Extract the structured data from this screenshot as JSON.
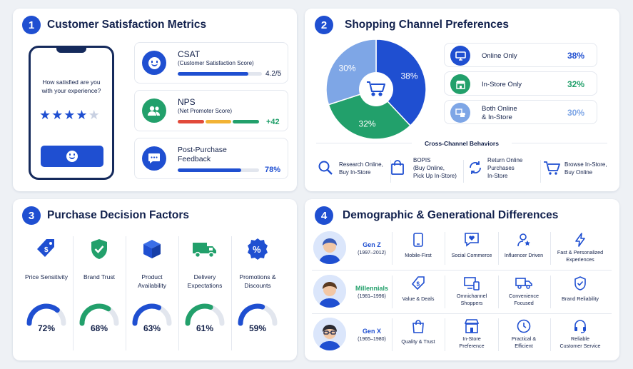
{
  "panel1": {
    "num": "1",
    "title": "Customer Satisfaction Metrics",
    "phone": {
      "question": "How satisfied are you with your experience?",
      "stars_filled": 4,
      "stars_total": 5
    },
    "metrics": [
      {
        "name": "CSAT",
        "sub": "(Customer Satisfaction Score)",
        "value": "4.2/5",
        "fill": 0.84
      },
      {
        "name": "NPS",
        "sub": "(Net Promoter Score)",
        "value": "+42"
      },
      {
        "name": "Post-Purchase",
        "sub": "Feedback",
        "value": "78%",
        "fill": 0.78
      }
    ]
  },
  "panel2": {
    "num": "2",
    "title": "Shopping Channel Preferences",
    "chart_data": {
      "type": "pie",
      "labels": [
        "Online Only",
        "In-Store Only",
        "Both Online & In-Store"
      ],
      "values": [
        38,
        32,
        30
      ],
      "colors": [
        "#1f4fd1",
        "#22a06b",
        "#7ea6e6"
      ],
      "slice_labels": [
        "38%",
        "32%",
        "30%"
      ]
    },
    "legend": [
      {
        "label1": "Online Only",
        "label2": "",
        "value": "38%",
        "color": "#1f4fd1"
      },
      {
        "label1": "In-Store Only",
        "label2": "",
        "value": "32%",
        "color": "#22a06b"
      },
      {
        "label1": "Both Online",
        "label2": "& In-Store",
        "value": "30%",
        "color": "#7ea6e6"
      }
    ],
    "cross_title": "Cross-Channel Behaviors",
    "behaviors": [
      {
        "lines": [
          "Research Online,",
          "Buy In-Store"
        ],
        "icon": "search-icon"
      },
      {
        "lines": [
          "BOPIS",
          "(Buy Online,",
          "Pick Up In-Store)"
        ],
        "icon": "shopping-bag-icon"
      },
      {
        "lines": [
          "Return Online",
          "Purchases",
          "In-Store"
        ],
        "icon": "return-arrows-icon"
      },
      {
        "lines": [
          "Browse In-Store,",
          "Buy Online"
        ],
        "icon": "cart-icon"
      }
    ]
  },
  "panel3": {
    "num": "3",
    "title": "Purchase Decision Factors",
    "factors": [
      {
        "lines": [
          "Price Sensitivity"
        ],
        "value": "72%",
        "pct": 72,
        "color": "#1f4fd1",
        "icon": "price-tag-icon"
      },
      {
        "lines": [
          "Brand Trust"
        ],
        "value": "68%",
        "pct": 68,
        "color": "#22a06b",
        "icon": "shield-check-icon"
      },
      {
        "lines": [
          "Product",
          "Availability"
        ],
        "value": "63%",
        "pct": 63,
        "color": "#1f4fd1",
        "icon": "box-icon"
      },
      {
        "lines": [
          "Delivery",
          "Expectations"
        ],
        "value": "61%",
        "pct": 61,
        "color": "#22a06b",
        "icon": "truck-icon"
      },
      {
        "lines": [
          "Promotions &",
          "Discounts"
        ],
        "value": "59%",
        "pct": 59,
        "color": "#1f4fd1",
        "icon": "percent-badge-icon"
      }
    ]
  },
  "panel4": {
    "num": "4",
    "title": "Demographic & Generational Differences",
    "generations": [
      {
        "name": "Gen Z",
        "years": "(1997–2012)",
        "name_color": "#1f4fd1",
        "traits": [
          [
            "Mobile-First"
          ],
          [
            "Social Commerce"
          ],
          [
            "Influencer Driven"
          ],
          [
            "Fast & Personalized",
            "Experiences"
          ]
        ],
        "icons": [
          "smartphone-icon",
          "heart-chat-icon",
          "influencer-icon",
          "lightning-icon"
        ]
      },
      {
        "name": "Millennials",
        "years": "(1981–1996)",
        "name_color": "#22a06b",
        "traits": [
          [
            "Value & Deals"
          ],
          [
            "Omnichannel",
            "Shoppers"
          ],
          [
            "Convenience",
            "Focused"
          ],
          [
            "Brand Reliability"
          ]
        ],
        "icons": [
          "price-tag-icon",
          "devices-icon",
          "delivery-truck-icon",
          "shield-check-icon"
        ]
      },
      {
        "name": "Gen X",
        "years": "(1965–1980)",
        "name_color": "#1f4fd1",
        "traits": [
          [
            "Quality & Trust"
          ],
          [
            "In-Store",
            "Preference"
          ],
          [
            "Practical &",
            "Efficient"
          ],
          [
            "Reliable",
            "Customer Service"
          ]
        ],
        "icons": [
          "shopping-bag-icon",
          "storefront-icon",
          "clock-icon",
          "headset-icon"
        ]
      }
    ]
  }
}
